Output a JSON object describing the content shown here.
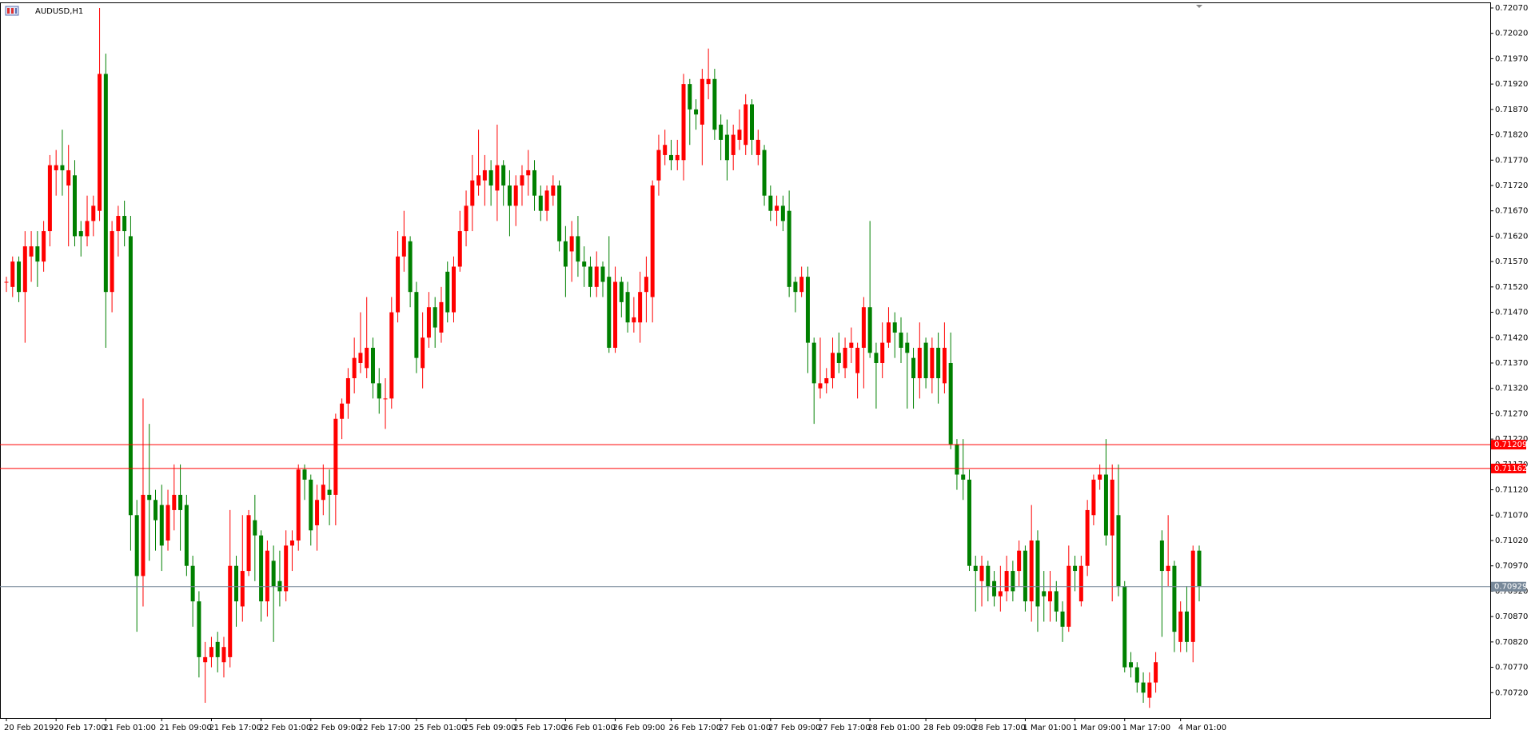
{
  "chart_data": {
    "type": "candlestick",
    "title": "AUDUSD,H1",
    "up_color": "#ff0000",
    "down_color": "#008000",
    "categories": [
      "20 Feb 2019",
      null,
      null,
      null,
      null,
      null,
      null,
      null,
      "20 Feb 17:00",
      null,
      null,
      null,
      null,
      null,
      null,
      null,
      "21 Feb 01:00",
      null,
      null,
      null,
      null,
      null,
      null,
      null,
      null,
      "21 Feb 09:00",
      null,
      null,
      null,
      null,
      null,
      null,
      null,
      "21 Feb 17:00",
      null,
      null,
      null,
      null,
      null,
      null,
      null,
      "22 Feb 01:00",
      null,
      null,
      null,
      null,
      null,
      null,
      null,
      "22 Feb 09:00",
      null,
      null,
      null,
      null,
      null,
      null,
      null,
      "22 Feb 17:00",
      null,
      null,
      null,
      null,
      null,
      null,
      null,
      null,
      "25 Feb 01:00",
      null,
      null,
      null,
      null,
      null,
      null,
      null,
      "25 Feb 09:00",
      null,
      null,
      null,
      null,
      null,
      null,
      null,
      "25 Feb 17:00",
      null,
      null,
      null,
      null,
      null,
      null,
      null,
      "26 Feb 01:00",
      null,
      null,
      null,
      null,
      null,
      null,
      null,
      "26 Feb 09:00",
      null,
      null,
      null,
      null,
      null,
      null,
      null,
      null,
      "26 Feb 17:00",
      null,
      null,
      null,
      null,
      null,
      null,
      null,
      "27 Feb 01:00",
      null,
      null,
      null,
      null,
      null,
      null,
      null,
      "27 Feb 09:00",
      null,
      null,
      null,
      null,
      null,
      null,
      null,
      "27 Feb 17:00",
      null,
      null,
      null,
      null,
      null,
      null,
      null,
      "28 Feb 01:00",
      null,
      null,
      null,
      null,
      null,
      null,
      null,
      null,
      "28 Feb 09:00",
      null,
      null,
      null,
      null,
      null,
      null,
      null,
      "28 Feb 17:00",
      null,
      null,
      null,
      null,
      null,
      null,
      null,
      "1 Mar 01:00",
      null,
      null,
      null,
      null,
      null,
      null,
      null,
      "1 Mar 09:00",
      null,
      null,
      null,
      null,
      null,
      null,
      null,
      "1 Mar 17:00",
      null,
      null,
      null,
      null,
      null,
      null,
      null,
      null,
      "4 Mar 01:00",
      null,
      null,
      null
    ],
    "open": [
      0.7153,
      0.7152,
      0.7157,
      0.7151,
      0.7158,
      0.716,
      0.7157,
      0.7163,
      0.7175,
      0.7176,
      0.7172,
      0.7174,
      0.7163,
      0.7162,
      0.7165,
      0.7167,
      0.7194,
      0.7151,
      0.7163,
      0.7166,
      0.7162,
      0.7107,
      0.7095,
      0.7111,
      0.711,
      0.7109,
      0.7102,
      0.7108,
      0.7111,
      0.7109,
      0.7097,
      0.709,
      0.7078,
      0.7079,
      0.7082,
      0.7078,
      0.7079,
      0.7097,
      0.7089,
      0.7096,
      0.7106,
      0.7103,
      0.709,
      0.7098,
      0.7094,
      0.7092,
      0.7101,
      0.7102,
      0.7116,
      0.7114,
      0.7105,
      0.711,
      0.7112,
      0.7111,
      0.7126,
      0.7129,
      0.7134,
      0.7137,
      0.7136,
      0.714,
      0.7133,
      0.713,
      0.713,
      0.7147,
      0.7158,
      0.7161,
      0.7151,
      0.7136,
      0.7142,
      0.7148,
      0.7143,
      0.7155,
      0.7147,
      0.7156,
      0.7163,
      0.7168,
      0.7172,
      0.7173,
      0.7175,
      0.7171,
      0.7176,
      0.7172,
      0.7168,
      0.7172,
      0.7174,
      0.7175,
      0.717,
      0.7167,
      0.717,
      0.7172,
      0.7161,
      0.7159,
      0.7162,
      0.7157,
      0.7156,
      0.7152,
      0.7156,
      0.7154,
      0.714,
      0.7153,
      0.7151,
      0.7145,
      0.7145,
      0.7151,
      0.715,
      0.7173,
      0.7178,
      0.7178,
      0.7177,
      0.7177,
      0.7192,
      0.7187,
      0.7184,
      0.7192,
      0.7193,
      0.7184,
      0.7182,
      0.7178,
      0.7181,
      0.718,
      0.7188,
      0.7178,
      0.7179,
      0.717,
      0.7167,
      0.7168,
      0.7167,
      0.7153,
      0.7151,
      0.7154,
      0.7141,
      0.7132,
      0.7133,
      0.7134,
      0.7139,
      0.7136,
      0.714,
      0.7135,
      0.714,
      0.7148,
      0.7139,
      0.7137,
      0.7141,
      0.7145,
      0.7143,
      0.7141,
      0.7138,
      0.7134,
      0.7141,
      0.7134,
      0.714,
      0.7133,
      0.7137,
      0.7121,
      0.7115,
      0.7114,
      0.7097,
      0.7094,
      0.7097,
      0.7094,
      0.7091,
      0.7092,
      0.7096,
      0.7096,
      0.71,
      0.709,
      0.7102,
      0.7092,
      0.709,
      0.7092,
      0.7088,
      0.7085,
      0.7097,
      0.709,
      0.7097,
      0.7107,
      0.7114,
      0.7115,
      0.7103,
      0.7107,
      0.7093,
      0.7078,
      0.7077,
      0.7074,
      0.7071,
      0.7074,
      0.7102,
      0.7096,
      0.7097,
      0.7082,
      0.7088,
      0.7082,
      0.71
    ],
    "high": [
      0.7154,
      0.7158,
      0.7158,
      0.7163,
      0.7163,
      0.7163,
      0.7165,
      0.7178,
      0.7179,
      0.7183,
      0.718,
      0.7177,
      0.7165,
      0.717,
      0.717,
      0.7207,
      0.7198,
      0.7165,
      0.7168,
      0.7169,
      0.7166,
      0.711,
      0.713,
      0.7125,
      0.7112,
      0.7113,
      0.7112,
      0.7117,
      0.7117,
      0.7111,
      0.7099,
      0.7092,
      0.7082,
      0.7083,
      0.7084,
      0.7083,
      0.7108,
      0.7099,
      0.7107,
      0.7108,
      0.7111,
      0.7104,
      0.7102,
      0.7101,
      0.71,
      0.7104,
      0.7104,
      0.7117,
      0.7117,
      0.7115,
      0.7113,
      0.7117,
      0.7116,
      0.7127,
      0.713,
      0.7136,
      0.7142,
      0.7147,
      0.715,
      0.7142,
      0.7136,
      0.7134,
      0.715,
      0.7163,
      0.7167,
      0.7162,
      0.7153,
      0.7147,
      0.7151,
      0.715,
      0.7152,
      0.7157,
      0.7158,
      0.7167,
      0.7171,
      0.7178,
      0.7183,
      0.7178,
      0.7177,
      0.7184,
      0.7177,
      0.7175,
      0.7174,
      0.7176,
      0.7179,
      0.7177,
      0.7172,
      0.7172,
      0.7174,
      0.7173,
      0.7164,
      0.7165,
      0.7166,
      0.716,
      0.7158,
      0.7159,
      0.7157,
      0.7162,
      0.7156,
      0.7154,
      0.7153,
      0.715,
      0.7155,
      0.7158,
      0.7173,
      0.7182,
      0.7183,
      0.7181,
      0.7181,
      0.7194,
      0.7193,
      0.7189,
      0.7195,
      0.7199,
      0.7195,
      0.7186,
      0.7185,
      0.7184,
      0.7187,
      0.719,
      0.7189,
      0.7183,
      0.718,
      0.7172,
      0.717,
      0.717,
      0.7171,
      0.7154,
      0.7156,
      0.7156,
      0.7142,
      0.7142,
      0.7136,
      0.7142,
      0.7143,
      0.7142,
      0.7144,
      0.7141,
      0.715,
      0.7165,
      0.7141,
      0.7145,
      0.7148,
      0.7147,
      0.7146,
      0.7143,
      0.714,
      0.7145,
      0.7142,
      0.7142,
      0.7143,
      0.7145,
      0.7143,
      0.7122,
      0.7122,
      0.7116,
      0.7099,
      0.7099,
      0.7098,
      0.7096,
      0.7097,
      0.7099,
      0.7098,
      0.7102,
      0.7101,
      0.7109,
      0.7104,
      0.7096,
      0.7096,
      0.7094,
      0.709,
      0.7101,
      0.7099,
      0.7099,
      0.711,
      0.7115,
      0.7117,
      0.7122,
      0.7117,
      0.7117,
      0.7094,
      0.708,
      0.7078,
      0.7076,
      0.7076,
      0.708,
      0.7104,
      0.7107,
      0.7098,
      0.709,
      0.7093,
      0.7101,
      0.7101
    ],
    "low": [
      0.7151,
      0.715,
      0.7149,
      0.7141,
      0.7153,
      0.7152,
      0.7155,
      0.716,
      0.717,
      0.717,
      0.716,
      0.716,
      0.7158,
      0.716,
      0.7162,
      0.7165,
      0.714,
      0.7147,
      0.7158,
      0.716,
      0.71,
      0.7084,
      0.7089,
      0.7098,
      0.71,
      0.7096,
      0.71,
      0.7104,
      0.71,
      0.7095,
      0.7085,
      0.7075,
      0.707,
      0.7077,
      0.7076,
      0.7075,
      0.7077,
      0.7085,
      0.7086,
      0.7095,
      0.7094,
      0.7086,
      0.7087,
      0.7082,
      0.7089,
      0.709,
      0.7096,
      0.71,
      0.711,
      0.7101,
      0.71,
      0.7107,
      0.7105,
      0.7105,
      0.7122,
      0.7126,
      0.7131,
      0.7135,
      0.7134,
      0.713,
      0.7127,
      0.7124,
      0.7128,
      0.7145,
      0.7155,
      0.7148,
      0.7135,
      0.7132,
      0.714,
      0.714,
      0.7141,
      0.7145,
      0.7145,
      0.7155,
      0.716,
      0.7163,
      0.717,
      0.7168,
      0.7168,
      0.7165,
      0.7168,
      0.7162,
      0.7164,
      0.7168,
      0.717,
      0.7167,
      0.7165,
      0.7165,
      0.7168,
      0.7159,
      0.715,
      0.7153,
      0.7154,
      0.7152,
      0.715,
      0.715,
      0.715,
      0.7139,
      0.7139,
      0.7146,
      0.7143,
      0.7143,
      0.7141,
      0.7145,
      0.7145,
      0.717,
      0.7176,
      0.7175,
      0.7175,
      0.7173,
      0.718,
      0.7183,
      0.7176,
      0.7189,
      0.7181,
      0.7177,
      0.7173,
      0.7175,
      0.7179,
      0.7178,
      0.7178,
      0.7176,
      0.7168,
      0.7165,
      0.7164,
      0.7163,
      0.715,
      0.7147,
      0.715,
      0.7135,
      0.7125,
      0.713,
      0.7131,
      0.7132,
      0.7135,
      0.7134,
      0.7137,
      0.713,
      0.7132,
      0.7138,
      0.7128,
      0.7134,
      0.714,
      0.7138,
      0.7137,
      0.7128,
      0.7128,
      0.713,
      0.7132,
      0.7131,
      0.7129,
      0.7131,
      0.712,
      0.7112,
      0.711,
      0.7096,
      0.7088,
      0.7089,
      0.709,
      0.7089,
      0.7088,
      0.709,
      0.709,
      0.7093,
      0.7088,
      0.7086,
      0.7084,
      0.7086,
      0.7086,
      0.7086,
      0.7082,
      0.7084,
      0.7092,
      0.7089,
      0.7095,
      0.7105,
      0.7112,
      0.7101,
      0.709,
      0.7091,
      0.7076,
      0.7075,
      0.7072,
      0.707,
      0.7069,
      0.7072,
      0.7083,
      0.7093,
      0.708,
      0.708,
      0.708,
      0.7078,
      0.709
    ],
    "close": [
      0.7153,
      0.7157,
      0.7151,
      0.716,
      0.716,
      0.7157,
      0.7163,
      0.7176,
      0.7176,
      0.7175,
      0.7175,
      0.7162,
      0.7162,
      0.7165,
      0.7168,
      0.7194,
      0.7151,
      0.7163,
      0.7166,
      0.7163,
      0.7107,
      0.7095,
      0.7111,
      0.711,
      0.7106,
      0.7101,
      0.7109,
      0.7111,
      0.7108,
      0.7097,
      0.709,
      0.7079,
      0.7079,
      0.7081,
      0.7079,
      0.7081,
      0.7097,
      0.709,
      0.7096,
      0.7107,
      0.7103,
      0.709,
      0.71,
      0.7093,
      0.7092,
      0.7101,
      0.7102,
      0.7116,
      0.7114,
      0.7104,
      0.711,
      0.7113,
      0.7111,
      0.7126,
      0.7129,
      0.7134,
      0.7138,
      0.7139,
      0.714,
      0.7133,
      0.713,
      0.713,
      0.7147,
      0.7158,
      0.7162,
      0.7151,
      0.7138,
      0.7142,
      0.7148,
      0.7144,
      0.7149,
      0.7147,
      0.7156,
      0.7163,
      0.7168,
      0.7173,
      0.7174,
      0.7175,
      0.7172,
      0.7176,
      0.7172,
      0.7168,
      0.7172,
      0.7174,
      0.7175,
      0.717,
      0.7167,
      0.7171,
      0.7172,
      0.7161,
      0.7156,
      0.7162,
      0.7157,
      0.7156,
      0.7152,
      0.7156,
      0.7153,
      0.714,
      0.7153,
      0.7149,
      0.7145,
      0.7146,
      0.7151,
      0.7154,
      0.7172,
      0.7179,
      0.718,
      0.7177,
      0.7178,
      0.7192,
      0.7187,
      0.7186,
      0.7193,
      0.7193,
      0.7183,
      0.7181,
      0.7177,
      0.7182,
      0.7183,
      0.7188,
      0.7181,
      0.7181,
      0.717,
      0.7167,
      0.7168,
      0.7165,
      0.7152,
      0.7151,
      0.7154,
      0.7141,
      0.7133,
      0.7133,
      0.7134,
      0.7139,
      0.7137,
      0.714,
      0.7141,
      0.714,
      0.7148,
      0.7139,
      0.7137,
      0.7141,
      0.7145,
      0.7143,
      0.714,
      0.7139,
      0.7134,
      0.714,
      0.7134,
      0.714,
      0.7134,
      0.714,
      0.7121,
      0.7115,
      0.7114,
      0.7097,
      0.7096,
      0.7097,
      0.7093,
      0.7091,
      0.7092,
      0.7096,
      0.7092,
      0.71,
      0.709,
      0.7102,
      0.7089,
      0.7091,
      0.7092,
      0.7088,
      0.7085,
      0.7097,
      0.7096,
      0.7097,
      0.7108,
      0.7114,
      0.7115,
      0.7103,
      0.7114,
      0.7093,
      0.7077,
      0.7077,
      0.7074,
      0.7072,
      0.7074,
      0.7078,
      0.7096,
      0.7097,
      0.7084,
      0.7088,
      0.7082,
      0.71,
      0.7093
    ],
    "ylim": [
      0.7067,
      0.72081
    ],
    "yticks": [
      {
        "value": 0.7207,
        "label": "0.72070"
      },
      {
        "value": 0.7202,
        "label": "0.72020"
      },
      {
        "value": 0.7197,
        "label": "0.71970"
      },
      {
        "value": 0.7192,
        "label": "0.71920"
      },
      {
        "value": 0.7187,
        "label": "0.71870"
      },
      {
        "value": 0.7182,
        "label": "0.71820"
      },
      {
        "value": 0.7177,
        "label": "0.71770"
      },
      {
        "value": 0.7172,
        "label": "0.71720"
      },
      {
        "value": 0.7167,
        "label": "0.71670"
      },
      {
        "value": 0.7162,
        "label": "0.71620"
      },
      {
        "value": 0.7157,
        "label": "0.71570"
      },
      {
        "value": 0.7152,
        "label": "0.71520"
      },
      {
        "value": 0.7147,
        "label": "0.71470"
      },
      {
        "value": 0.7142,
        "label": "0.71420"
      },
      {
        "value": 0.7137,
        "label": "0.71370"
      },
      {
        "value": 0.7132,
        "label": "0.71320"
      },
      {
        "value": 0.7127,
        "label": "0.71270"
      },
      {
        "value": 0.7122,
        "label": "0.71220"
      },
      {
        "value": 0.7117,
        "label": "0.71170"
      },
      {
        "value": 0.7112,
        "label": "0.71120"
      },
      {
        "value": 0.7107,
        "label": "0.71070"
      },
      {
        "value": 0.7102,
        "label": "0.71020"
      },
      {
        "value": 0.7097,
        "label": "0.70970"
      },
      {
        "value": 0.7092,
        "label": "0.70920"
      },
      {
        "value": 0.7087,
        "label": "0.70870"
      },
      {
        "value": 0.7082,
        "label": "0.70820"
      },
      {
        "value": 0.7077,
        "label": "0.70770"
      },
      {
        "value": 0.7072,
        "label": "0.70720"
      }
    ],
    "levels": [
      {
        "value": 0.71209,
        "color": "#ff0000"
      },
      {
        "value": 0.71162,
        "color": "#ff0000"
      },
      {
        "value": 0.70929,
        "color": "#778899"
      }
    ],
    "grid": false
  }
}
